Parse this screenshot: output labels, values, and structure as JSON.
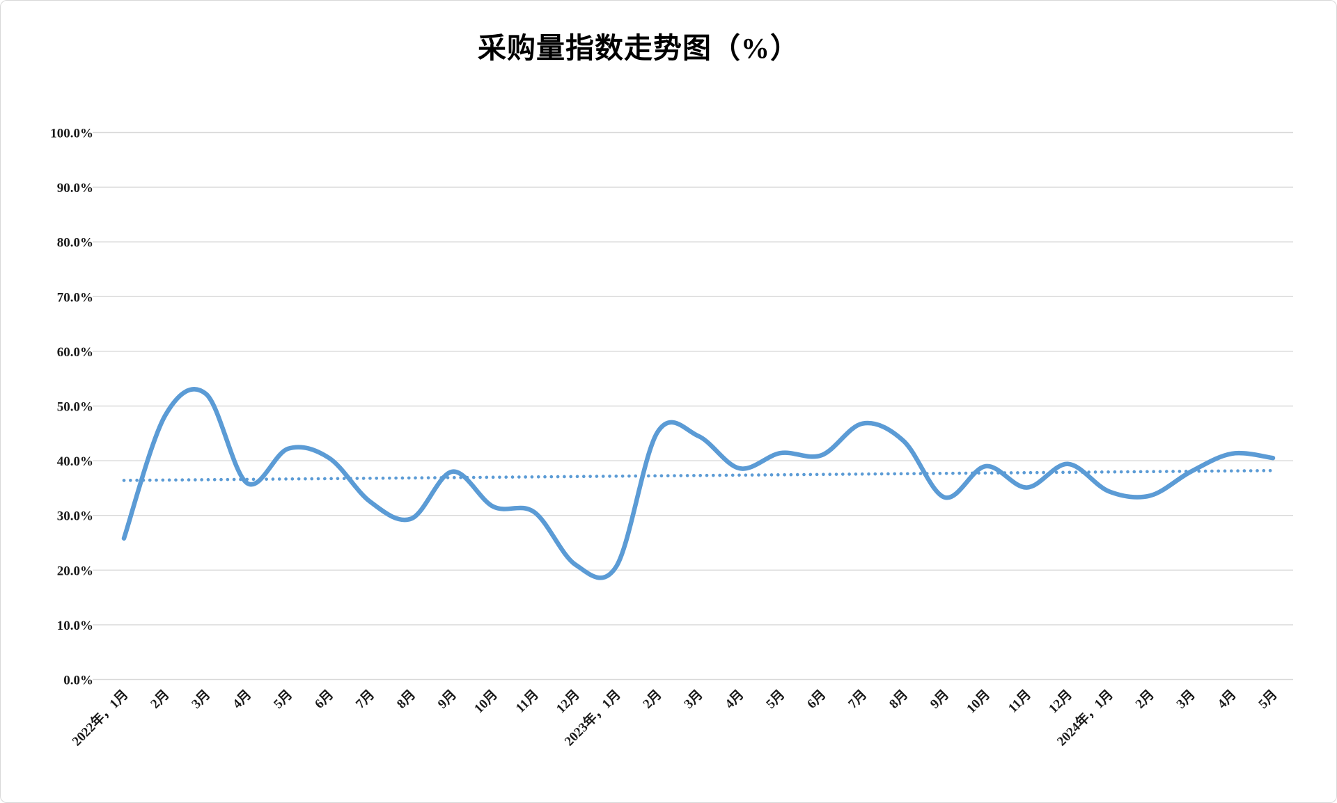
{
  "chart_data": {
    "type": "line",
    "title": "采购量指数走势图（%）",
    "categories": [
      "2022年，1月",
      "2月",
      "3月",
      "4月",
      "5月",
      "6月",
      "7月",
      "8月",
      "9月",
      "10月",
      "11月",
      "12月",
      "2023年，1月",
      "2月",
      "3月",
      "4月",
      "5月",
      "6月",
      "7月",
      "8月",
      "9月",
      "10月",
      "11月",
      "12月",
      "2024年，1月",
      "2月",
      "3月",
      "4月",
      "5月"
    ],
    "series": [
      {
        "values": [
          25.8,
          48.2,
          52.2,
          35.9,
          42.2,
          40.5,
          32.5,
          29.4,
          38.0,
          31.6,
          30.6,
          21.0,
          20.7,
          45.2,
          44.5,
          38.6,
          41.4,
          41.0,
          46.8,
          43.6,
          33.3,
          39.0,
          35.1,
          39.4,
          34.4,
          33.6,
          38.0,
          41.3,
          40.5
        ]
      }
    ],
    "trendline": {
      "style": "dotted",
      "start_value": 36.4,
      "end_value": 38.2
    },
    "xlabel": "",
    "ylabel": "",
    "ylim": [
      0,
      100
    ],
    "ytick_step": 10,
    "y_tick_labels": [
      "0.0%",
      "10.0%",
      "20.0%",
      "30.0%",
      "40.0%",
      "50.0%",
      "60.0%",
      "70.0%",
      "80.0%",
      "90.0%",
      "100.0%"
    ],
    "grid": true,
    "legend": "none",
    "line_color": "#5B9BD5",
    "trendline_color": "#5B9BD5",
    "gridline_color": "#D9D9D9",
    "tick_label_color": "#1a1a1a"
  }
}
